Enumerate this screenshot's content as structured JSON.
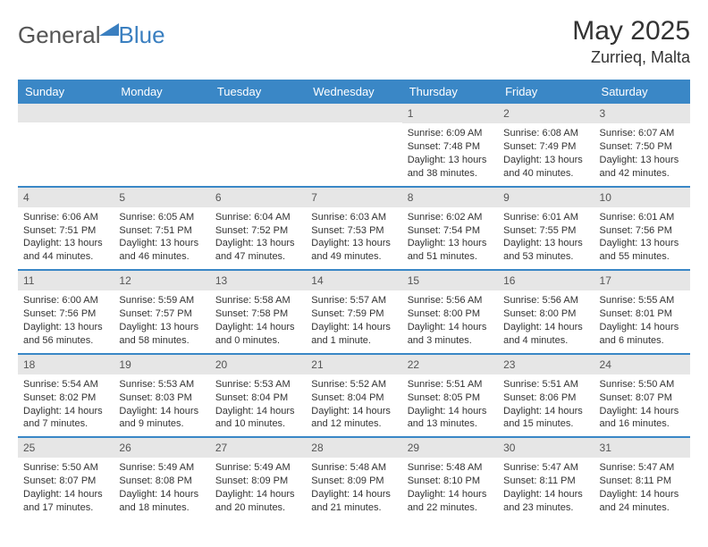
{
  "logo": {
    "general": "General",
    "blue": "Blue"
  },
  "title": "May 2025",
  "location": "Zurrieq, Malta",
  "colors": {
    "accent": "#3a87c6",
    "daybar": "#e6e6e6",
    "text": "#333333",
    "logo_blue": "#3a7fc0"
  },
  "day_headers": [
    "Sunday",
    "Monday",
    "Tuesday",
    "Wednesday",
    "Thursday",
    "Friday",
    "Saturday"
  ],
  "weeks": [
    [
      {
        "empty": true
      },
      {
        "empty": true
      },
      {
        "empty": true
      },
      {
        "empty": true
      },
      {
        "day": "1",
        "sunrise": "Sunrise: 6:09 AM",
        "sunset": "Sunset: 7:48 PM",
        "dl1": "Daylight: 13 hours",
        "dl2": "and 38 minutes."
      },
      {
        "day": "2",
        "sunrise": "Sunrise: 6:08 AM",
        "sunset": "Sunset: 7:49 PM",
        "dl1": "Daylight: 13 hours",
        "dl2": "and 40 minutes."
      },
      {
        "day": "3",
        "sunrise": "Sunrise: 6:07 AM",
        "sunset": "Sunset: 7:50 PM",
        "dl1": "Daylight: 13 hours",
        "dl2": "and 42 minutes."
      }
    ],
    [
      {
        "day": "4",
        "sunrise": "Sunrise: 6:06 AM",
        "sunset": "Sunset: 7:51 PM",
        "dl1": "Daylight: 13 hours",
        "dl2": "and 44 minutes."
      },
      {
        "day": "5",
        "sunrise": "Sunrise: 6:05 AM",
        "sunset": "Sunset: 7:51 PM",
        "dl1": "Daylight: 13 hours",
        "dl2": "and 46 minutes."
      },
      {
        "day": "6",
        "sunrise": "Sunrise: 6:04 AM",
        "sunset": "Sunset: 7:52 PM",
        "dl1": "Daylight: 13 hours",
        "dl2": "and 47 minutes."
      },
      {
        "day": "7",
        "sunrise": "Sunrise: 6:03 AM",
        "sunset": "Sunset: 7:53 PM",
        "dl1": "Daylight: 13 hours",
        "dl2": "and 49 minutes."
      },
      {
        "day": "8",
        "sunrise": "Sunrise: 6:02 AM",
        "sunset": "Sunset: 7:54 PM",
        "dl1": "Daylight: 13 hours",
        "dl2": "and 51 minutes."
      },
      {
        "day": "9",
        "sunrise": "Sunrise: 6:01 AM",
        "sunset": "Sunset: 7:55 PM",
        "dl1": "Daylight: 13 hours",
        "dl2": "and 53 minutes."
      },
      {
        "day": "10",
        "sunrise": "Sunrise: 6:01 AM",
        "sunset": "Sunset: 7:56 PM",
        "dl1": "Daylight: 13 hours",
        "dl2": "and 55 minutes."
      }
    ],
    [
      {
        "day": "11",
        "sunrise": "Sunrise: 6:00 AM",
        "sunset": "Sunset: 7:56 PM",
        "dl1": "Daylight: 13 hours",
        "dl2": "and 56 minutes."
      },
      {
        "day": "12",
        "sunrise": "Sunrise: 5:59 AM",
        "sunset": "Sunset: 7:57 PM",
        "dl1": "Daylight: 13 hours",
        "dl2": "and 58 minutes."
      },
      {
        "day": "13",
        "sunrise": "Sunrise: 5:58 AM",
        "sunset": "Sunset: 7:58 PM",
        "dl1": "Daylight: 14 hours",
        "dl2": "and 0 minutes."
      },
      {
        "day": "14",
        "sunrise": "Sunrise: 5:57 AM",
        "sunset": "Sunset: 7:59 PM",
        "dl1": "Daylight: 14 hours",
        "dl2": "and 1 minute."
      },
      {
        "day": "15",
        "sunrise": "Sunrise: 5:56 AM",
        "sunset": "Sunset: 8:00 PM",
        "dl1": "Daylight: 14 hours",
        "dl2": "and 3 minutes."
      },
      {
        "day": "16",
        "sunrise": "Sunrise: 5:56 AM",
        "sunset": "Sunset: 8:00 PM",
        "dl1": "Daylight: 14 hours",
        "dl2": "and 4 minutes."
      },
      {
        "day": "17",
        "sunrise": "Sunrise: 5:55 AM",
        "sunset": "Sunset: 8:01 PM",
        "dl1": "Daylight: 14 hours",
        "dl2": "and 6 minutes."
      }
    ],
    [
      {
        "day": "18",
        "sunrise": "Sunrise: 5:54 AM",
        "sunset": "Sunset: 8:02 PM",
        "dl1": "Daylight: 14 hours",
        "dl2": "and 7 minutes."
      },
      {
        "day": "19",
        "sunrise": "Sunrise: 5:53 AM",
        "sunset": "Sunset: 8:03 PM",
        "dl1": "Daylight: 14 hours",
        "dl2": "and 9 minutes."
      },
      {
        "day": "20",
        "sunrise": "Sunrise: 5:53 AM",
        "sunset": "Sunset: 8:04 PM",
        "dl1": "Daylight: 14 hours",
        "dl2": "and 10 minutes."
      },
      {
        "day": "21",
        "sunrise": "Sunrise: 5:52 AM",
        "sunset": "Sunset: 8:04 PM",
        "dl1": "Daylight: 14 hours",
        "dl2": "and 12 minutes."
      },
      {
        "day": "22",
        "sunrise": "Sunrise: 5:51 AM",
        "sunset": "Sunset: 8:05 PM",
        "dl1": "Daylight: 14 hours",
        "dl2": "and 13 minutes."
      },
      {
        "day": "23",
        "sunrise": "Sunrise: 5:51 AM",
        "sunset": "Sunset: 8:06 PM",
        "dl1": "Daylight: 14 hours",
        "dl2": "and 15 minutes."
      },
      {
        "day": "24",
        "sunrise": "Sunrise: 5:50 AM",
        "sunset": "Sunset: 8:07 PM",
        "dl1": "Daylight: 14 hours",
        "dl2": "and 16 minutes."
      }
    ],
    [
      {
        "day": "25",
        "sunrise": "Sunrise: 5:50 AM",
        "sunset": "Sunset: 8:07 PM",
        "dl1": "Daylight: 14 hours",
        "dl2": "and 17 minutes."
      },
      {
        "day": "26",
        "sunrise": "Sunrise: 5:49 AM",
        "sunset": "Sunset: 8:08 PM",
        "dl1": "Daylight: 14 hours",
        "dl2": "and 18 minutes."
      },
      {
        "day": "27",
        "sunrise": "Sunrise: 5:49 AM",
        "sunset": "Sunset: 8:09 PM",
        "dl1": "Daylight: 14 hours",
        "dl2": "and 20 minutes."
      },
      {
        "day": "28",
        "sunrise": "Sunrise: 5:48 AM",
        "sunset": "Sunset: 8:09 PM",
        "dl1": "Daylight: 14 hours",
        "dl2": "and 21 minutes."
      },
      {
        "day": "29",
        "sunrise": "Sunrise: 5:48 AM",
        "sunset": "Sunset: 8:10 PM",
        "dl1": "Daylight: 14 hours",
        "dl2": "and 22 minutes."
      },
      {
        "day": "30",
        "sunrise": "Sunrise: 5:47 AM",
        "sunset": "Sunset: 8:11 PM",
        "dl1": "Daylight: 14 hours",
        "dl2": "and 23 minutes."
      },
      {
        "day": "31",
        "sunrise": "Sunrise: 5:47 AM",
        "sunset": "Sunset: 8:11 PM",
        "dl1": "Daylight: 14 hours",
        "dl2": "and 24 minutes."
      }
    ]
  ]
}
